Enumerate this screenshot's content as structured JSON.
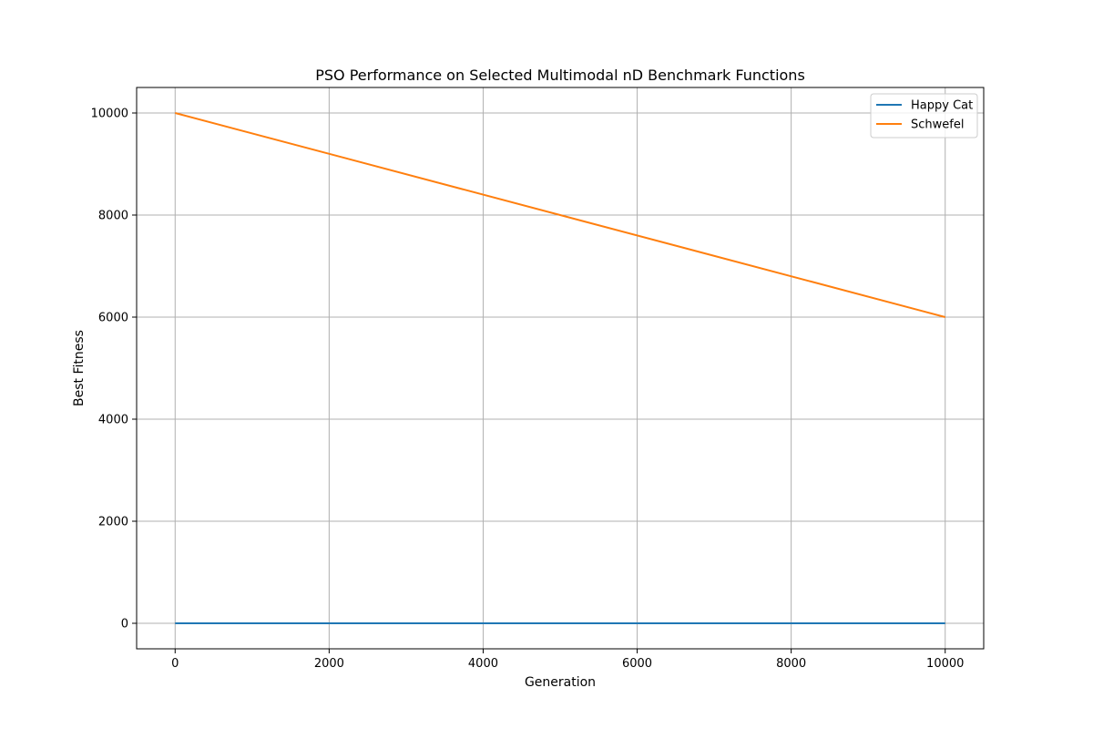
{
  "chart_data": {
    "type": "line",
    "title": "PSO Performance on Selected Multimodal nD Benchmark Functions",
    "xlabel": "Generation",
    "ylabel": "Best Fitness",
    "xlim": [
      -500,
      10500
    ],
    "ylim": [
      -500,
      10500
    ],
    "xticks": [
      0,
      2000,
      4000,
      6000,
      8000,
      10000
    ],
    "yticks": [
      0,
      2000,
      4000,
      6000,
      8000,
      10000
    ],
    "grid": true,
    "legend_position": "top-right",
    "series": [
      {
        "name": "Happy Cat",
        "color": "#1f77b4",
        "x": [
          0,
          10000
        ],
        "y": [
          0,
          0
        ]
      },
      {
        "name": "Schwefel",
        "color": "#ff7f0e",
        "x": [
          0,
          10000
        ],
        "y": [
          10000,
          6000
        ]
      }
    ]
  }
}
